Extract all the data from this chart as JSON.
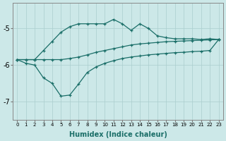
{
  "xlabel": "Humidex (Indice chaleur)",
  "background_color": "#cce8e8",
  "grid_color": "#aacece",
  "line_color": "#1a6e68",
  "xlim": [
    -0.5,
    23.5
  ],
  "ylim": [
    -7.5,
    -4.3
  ],
  "ytick_values": [
    -7,
    -6,
    -5
  ],
  "x": [
    0,
    1,
    2,
    3,
    4,
    5,
    6,
    7,
    8,
    9,
    10,
    11,
    12,
    13,
    14,
    15,
    16,
    17,
    18,
    19,
    20,
    21,
    22,
    23
  ],
  "line1_y": [
    -5.85,
    -5.85,
    -5.85,
    -5.6,
    -5.35,
    -5.1,
    -4.95,
    -4.87,
    -4.87,
    -4.87,
    -4.87,
    -4.75,
    -4.87,
    -5.05,
    -4.87,
    -5.0,
    -5.2,
    -5.25,
    -5.28,
    -5.28,
    -5.28,
    -5.3,
    -5.28,
    -5.3
  ],
  "line2_y": [
    -5.85,
    -5.85,
    -5.85,
    -5.85,
    -5.85,
    -5.85,
    -5.82,
    -5.78,
    -5.72,
    -5.65,
    -5.6,
    -5.55,
    -5.5,
    -5.45,
    -5.42,
    -5.4,
    -5.38,
    -5.36,
    -5.35,
    -5.34,
    -5.33,
    -5.32,
    -5.31,
    -5.3
  ],
  "line3_y": [
    -5.85,
    -5.95,
    -6.0,
    -6.35,
    -6.5,
    -6.85,
    -6.82,
    -6.52,
    -6.2,
    -6.05,
    -5.95,
    -5.88,
    -5.82,
    -5.78,
    -5.75,
    -5.72,
    -5.7,
    -5.68,
    -5.66,
    -5.65,
    -5.63,
    -5.62,
    -5.6,
    -5.3
  ]
}
